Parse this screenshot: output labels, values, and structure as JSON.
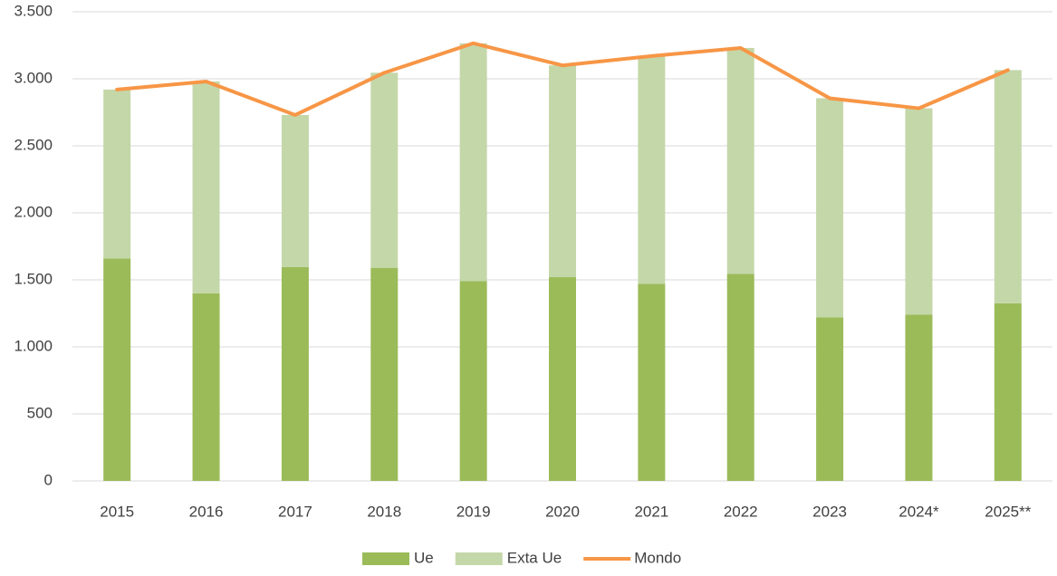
{
  "chart_data": {
    "type": "stacked_bar_line",
    "categories": [
      "2015",
      "2016",
      "2017",
      "2018",
      "2019",
      "2020",
      "2021",
      "2022",
      "2023",
      "2024*",
      "2025**"
    ],
    "series": [
      {
        "name": "Ue",
        "color": "#9bbb59",
        "type": "bar",
        "values": [
          1660,
          1400,
          1595,
          1590,
          1490,
          1520,
          1470,
          1545,
          1220,
          1240,
          1325
        ]
      },
      {
        "name": "Exta Ue",
        "color": "#c4d7a9",
        "type": "bar",
        "values": [
          1260,
          1580,
          1135,
          1455,
          1775,
          1580,
          1700,
          1685,
          1635,
          1540,
          1740
        ]
      },
      {
        "name": "Mondo",
        "color": "#f79646",
        "type": "line",
        "values": [
          2920,
          2980,
          2730,
          3045,
          3265,
          3100,
          3170,
          3230,
          2855,
          2780,
          3065
        ]
      }
    ],
    "ylim": [
      0,
      3500
    ],
    "yticks": [
      0,
      500,
      {
        "value": 1000,
        "label": "1.000"
      },
      {
        "value": 1500,
        "label": "1.500"
      },
      {
        "value": 2000,
        "label": "2.000"
      },
      {
        "value": 2500,
        "label": "2.500"
      },
      {
        "value": 3000,
        "label": "3.000"
      },
      {
        "value": 3500,
        "label": "3.500"
      }
    ],
    "grid": true,
    "legend": "bottom"
  }
}
